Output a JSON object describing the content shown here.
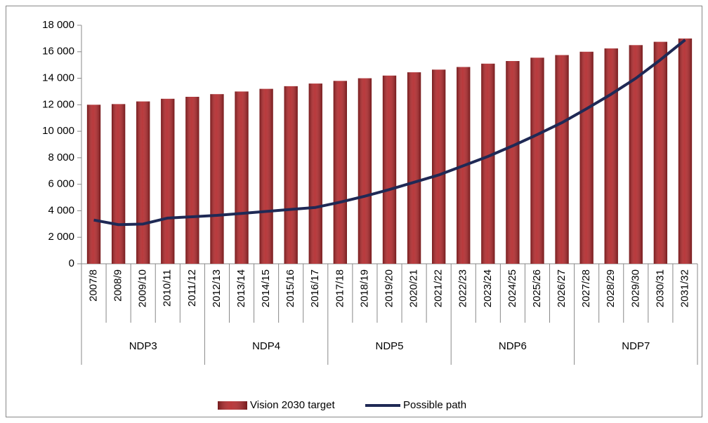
{
  "chart_data": {
    "type": "bar",
    "categories": [
      "2007/8",
      "2008/9",
      "2009/10",
      "2010/11",
      "2011/12",
      "2012/13",
      "2013/14",
      "2014/15",
      "2015/16",
      "2016/17",
      "2017/18",
      "2018/19",
      "2019/20",
      "2020/21",
      "2021/22",
      "2022/23",
      "2023/24",
      "2024/25",
      "2025/26",
      "2026/27",
      "2027/28",
      "2028/29",
      "2029/30",
      "2030/31",
      "2031/32"
    ],
    "group_labels": [
      "NDP3",
      "NDP4",
      "NDP5",
      "NDP6",
      "NDP7"
    ],
    "series": [
      {
        "name": "Vision 2030 target",
        "kind": "bar",
        "color": "#b3282b",
        "values": [
          12000,
          12050,
          12250,
          12450,
          12600,
          12800,
          13000,
          13200,
          13400,
          13600,
          13800,
          14000,
          14200,
          14450,
          14650,
          14850,
          15100,
          15300,
          15550,
          15750,
          16000,
          16250,
          16500,
          16750,
          17000
        ]
      },
      {
        "name": "Possible path",
        "kind": "line",
        "color": "#1f2955",
        "values": [
          3300,
          2950,
          3000,
          3450,
          3550,
          3650,
          3800,
          3950,
          4100,
          4250,
          4650,
          5100,
          5600,
          6150,
          6700,
          7400,
          8100,
          8900,
          9750,
          10650,
          11700,
          12800,
          14000,
          15400,
          16900
        ]
      }
    ],
    "ylim": [
      0,
      18000
    ],
    "yticks": [
      0,
      {
        "value": 2000,
        "label": "2 000"
      },
      {
        "value": 4000,
        "label": "4 000"
      },
      {
        "value": 6000,
        "label": "6 000"
      },
      {
        "value": 8000,
        "label": "8 000"
      },
      {
        "value": 10000,
        "label": "10 000"
      },
      {
        "value": 12000,
        "label": "12 000"
      },
      {
        "value": 14000,
        "label": "14 000"
      },
      {
        "value": 16000,
        "label": "16 000"
      },
      {
        "value": 18000,
        "label": "18 000"
      }
    ],
    "legend": "bottom"
  }
}
